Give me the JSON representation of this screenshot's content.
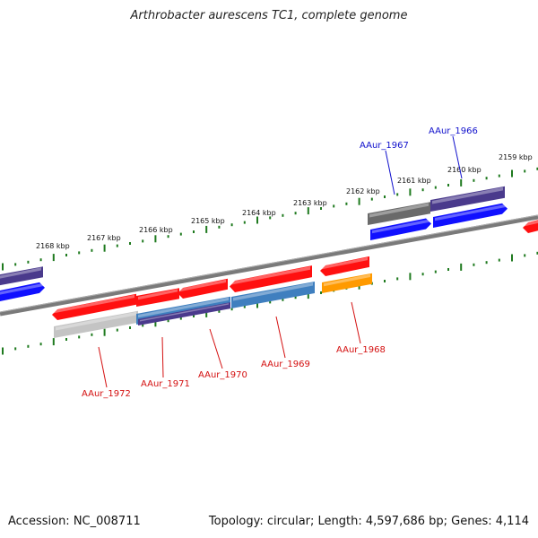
{
  "title": "Arthrobacter aurescens TC1, complete genome",
  "footer": {
    "accession": "Accession: NC_008711",
    "summary": "Topology: circular; Length: 4,597,686 bp; Genes: 4,114"
  },
  "colors": {
    "backbone": "#7a7a7a",
    "tick": "#1f7a1f",
    "red": "#ff1010",
    "blue": "#1010ff",
    "purple": "#4a3a8c",
    "steel": "#3f7fbf",
    "gray": "#6a6a6a",
    "lightgray": "#c4c4c4",
    "orange": "#ff9a00",
    "label_red": "#d41010",
    "label_blue": "#1010cc"
  },
  "scale_labels": [
    "2159 kbp",
    "2160 kbp",
    "2161 kbp",
    "2162 kbp",
    "2163 kbp",
    "2164 kbp",
    "2165 kbp",
    "2166 kbp",
    "2167 kbp",
    "2168 kbp"
  ],
  "gene_labels": [
    {
      "text": "AAur_1966",
      "color": "blue"
    },
    {
      "text": "AAur_1967",
      "color": "blue"
    },
    {
      "text": "AAur_1968",
      "color": "red"
    },
    {
      "text": "AAur_1969",
      "color": "red"
    },
    {
      "text": "AAur_1970",
      "color": "red"
    },
    {
      "text": "AAur_1971",
      "color": "red"
    },
    {
      "text": "AAur_1972",
      "color": "red"
    }
  ]
}
